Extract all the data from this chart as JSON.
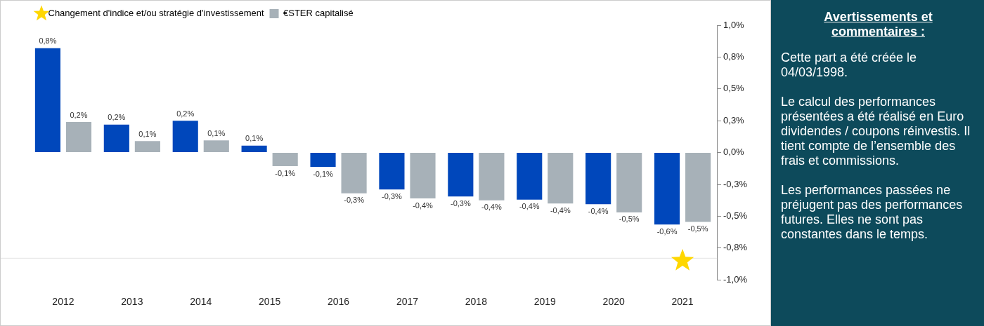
{
  "chart_data": {
    "type": "bar",
    "categories": [
      "2012",
      "2013",
      "2014",
      "2015",
      "2016",
      "2017",
      "2018",
      "2019",
      "2020",
      "2021"
    ],
    "series": [
      {
        "type": "scatter",
        "marker": "star",
        "name": "Changement d'indice et/ou stratégie d'investissement",
        "color": "#ffd700",
        "values": [
          null,
          null,
          null,
          null,
          null,
          null,
          null,
          null,
          null,
          -0.85
        ]
      },
      {
        "color": "#0047bb",
        "values": [
          0.82,
          0.22,
          0.25,
          0.054,
          -0.113,
          -0.29,
          -0.345,
          -0.37,
          -0.405,
          -0.565
        ],
        "value_labels": [
          "0,8%",
          "0,2%",
          "0,2%",
          "0,1%",
          "-0,1%",
          "-0,3%",
          "-0,3%",
          "-0,4%",
          "-0,4%",
          "-0,6%"
        ]
      },
      {
        "name": "€STER capitalisé",
        "color": "#a7b1b8",
        "values": [
          0.24,
          0.09,
          0.095,
          -0.107,
          -0.32,
          -0.36,
          -0.375,
          -0.4,
          -0.47,
          -0.545
        ],
        "value_labels": [
          "0,2%",
          "0,1%",
          "0,1%",
          "-0,1%",
          "-0,3%",
          "-0,4%",
          "-0,4%",
          "-0,4%",
          "-0,5%",
          "-0,5%"
        ]
      }
    ],
    "ylim": [
      -1,
      1
    ],
    "yticks": [
      {
        "value": 1,
        "label": "1,0%"
      },
      {
        "value": 0.75,
        "label": "0,8%"
      },
      {
        "value": 0.5,
        "label": "0,5%"
      },
      {
        "value": 0.25,
        "label": "0,3%"
      },
      {
        "value": 0,
        "label": "0,0%"
      },
      {
        "value": -0.25,
        "label": "-0,3%"
      },
      {
        "value": -0.5,
        "label": "-0,5%"
      },
      {
        "value": -0.75,
        "label": "-0,8%"
      },
      {
        "value": -1,
        "label": "-1,0%"
      }
    ],
    "ref_lines": [
      {
        "axis": "y",
        "value": -0.83,
        "color": "#e3e3e3"
      }
    ],
    "grid": false,
    "legend": "top left",
    "annotations": [
      "Avertissements et commentaires :",
      "Cette part a été créée le 04/03/1998.",
      "Le calcul des performances présentées a été réalisé en Euro dividendes / coupons réinvestis. Il tient compte de l’ensemble des frais et commissions.",
      "Les performances passées ne préjugent pas des performances futures. Elles ne sont pas constantes dans le temps."
    ]
  }
}
